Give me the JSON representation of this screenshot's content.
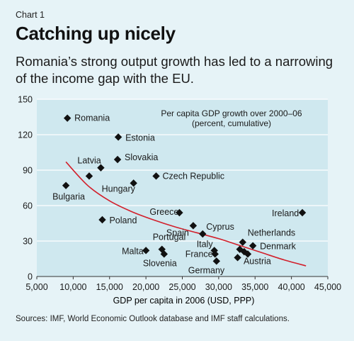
{
  "header": {
    "kicker": "Chart 1",
    "title": "Catching up nicely",
    "subtitle": "Romania’s strong output growth has led to a narrowing of the income gap with the EU."
  },
  "source": "Sources: IMF, World Economic Outlook database and IMF staff calculations.",
  "colors": {
    "background": "#e6f3f7",
    "plot_background": "#cfe8ef",
    "gridline": "#ffffff",
    "marker": "#111111",
    "trend": "#d21f2b"
  },
  "chart_data": {
    "type": "scatter",
    "title": "",
    "annotation": [
      "Per capita GDP growth over 2000–06",
      "(percent, cumulative)"
    ],
    "xlabel": "GDP per capita in 2006 (USD, PPP)",
    "ylabel": "",
    "xlim": [
      5000,
      45000
    ],
    "ylim": [
      0,
      150
    ],
    "xticks": [
      5000,
      10000,
      15000,
      20000,
      25000,
      30000,
      35000,
      40000,
      45000
    ],
    "xtick_labels": [
      "5,000",
      "10,000",
      "15,000",
      "20,000",
      "25,000",
      "30,000",
      "35,000",
      "40,000",
      "45,000"
    ],
    "yticks": [
      0,
      30,
      60,
      90,
      120,
      150
    ],
    "ytick_labels": [
      "0",
      "30",
      "60",
      "90",
      "120",
      "150"
    ],
    "grid": "horizontal",
    "points": [
      {
        "x": 9200,
        "y": 134,
        "label": "Romania"
      },
      {
        "x": 16200,
        "y": 118,
        "label": "Estonia"
      },
      {
        "x": 16100,
        "y": 99,
        "label": "Slovakia"
      },
      {
        "x": 13800,
        "y": 92,
        "label": "Latvia"
      },
      {
        "x": 12200,
        "y": 85,
        "label": ""
      },
      {
        "x": 9000,
        "y": 77,
        "label": "Bulgaria"
      },
      {
        "x": 21400,
        "y": 85,
        "label": "Czech Republic"
      },
      {
        "x": 18300,
        "y": 79,
        "label": "Hungary"
      },
      {
        "x": 14000,
        "y": 48,
        "label": "Poland"
      },
      {
        "x": 24600,
        "y": 54,
        "label": "Greece"
      },
      {
        "x": 26500,
        "y": 43,
        "label": "Spain"
      },
      {
        "x": 27800,
        "y": 36,
        "label": "Cyprus"
      },
      {
        "x": 41500,
        "y": 54,
        "label": "Ireland"
      },
      {
        "x": 20000,
        "y": 22,
        "label": "Malta"
      },
      {
        "x": 22200,
        "y": 23,
        "label": "Portugal"
      },
      {
        "x": 22500,
        "y": 19,
        "label": "Slovenia"
      },
      {
        "x": 29400,
        "y": 22,
        "label": "Italy"
      },
      {
        "x": 29500,
        "y": 19,
        "label": "France"
      },
      {
        "x": 29700,
        "y": 13,
        "label": "Germany"
      },
      {
        "x": 33300,
        "y": 29,
        "label": "Netherlands"
      },
      {
        "x": 34700,
        "y": 26,
        "label": "Denmark"
      },
      {
        "x": 32900,
        "y": 23,
        "label": ""
      },
      {
        "x": 33500,
        "y": 21,
        "label": ""
      },
      {
        "x": 32600,
        "y": 16,
        "label": ""
      },
      {
        "x": 34000,
        "y": 19,
        "label": "Austria"
      }
    ],
    "trend_line": {
      "x": [
        9000,
        12000,
        15000,
        18000,
        21000,
        24000,
        27000,
        30000,
        33000,
        36000,
        39000,
        42000
      ],
      "y": [
        97,
        77,
        64,
        55,
        48,
        42,
        37,
        32,
        26,
        20,
        14,
        9
      ]
    }
  }
}
